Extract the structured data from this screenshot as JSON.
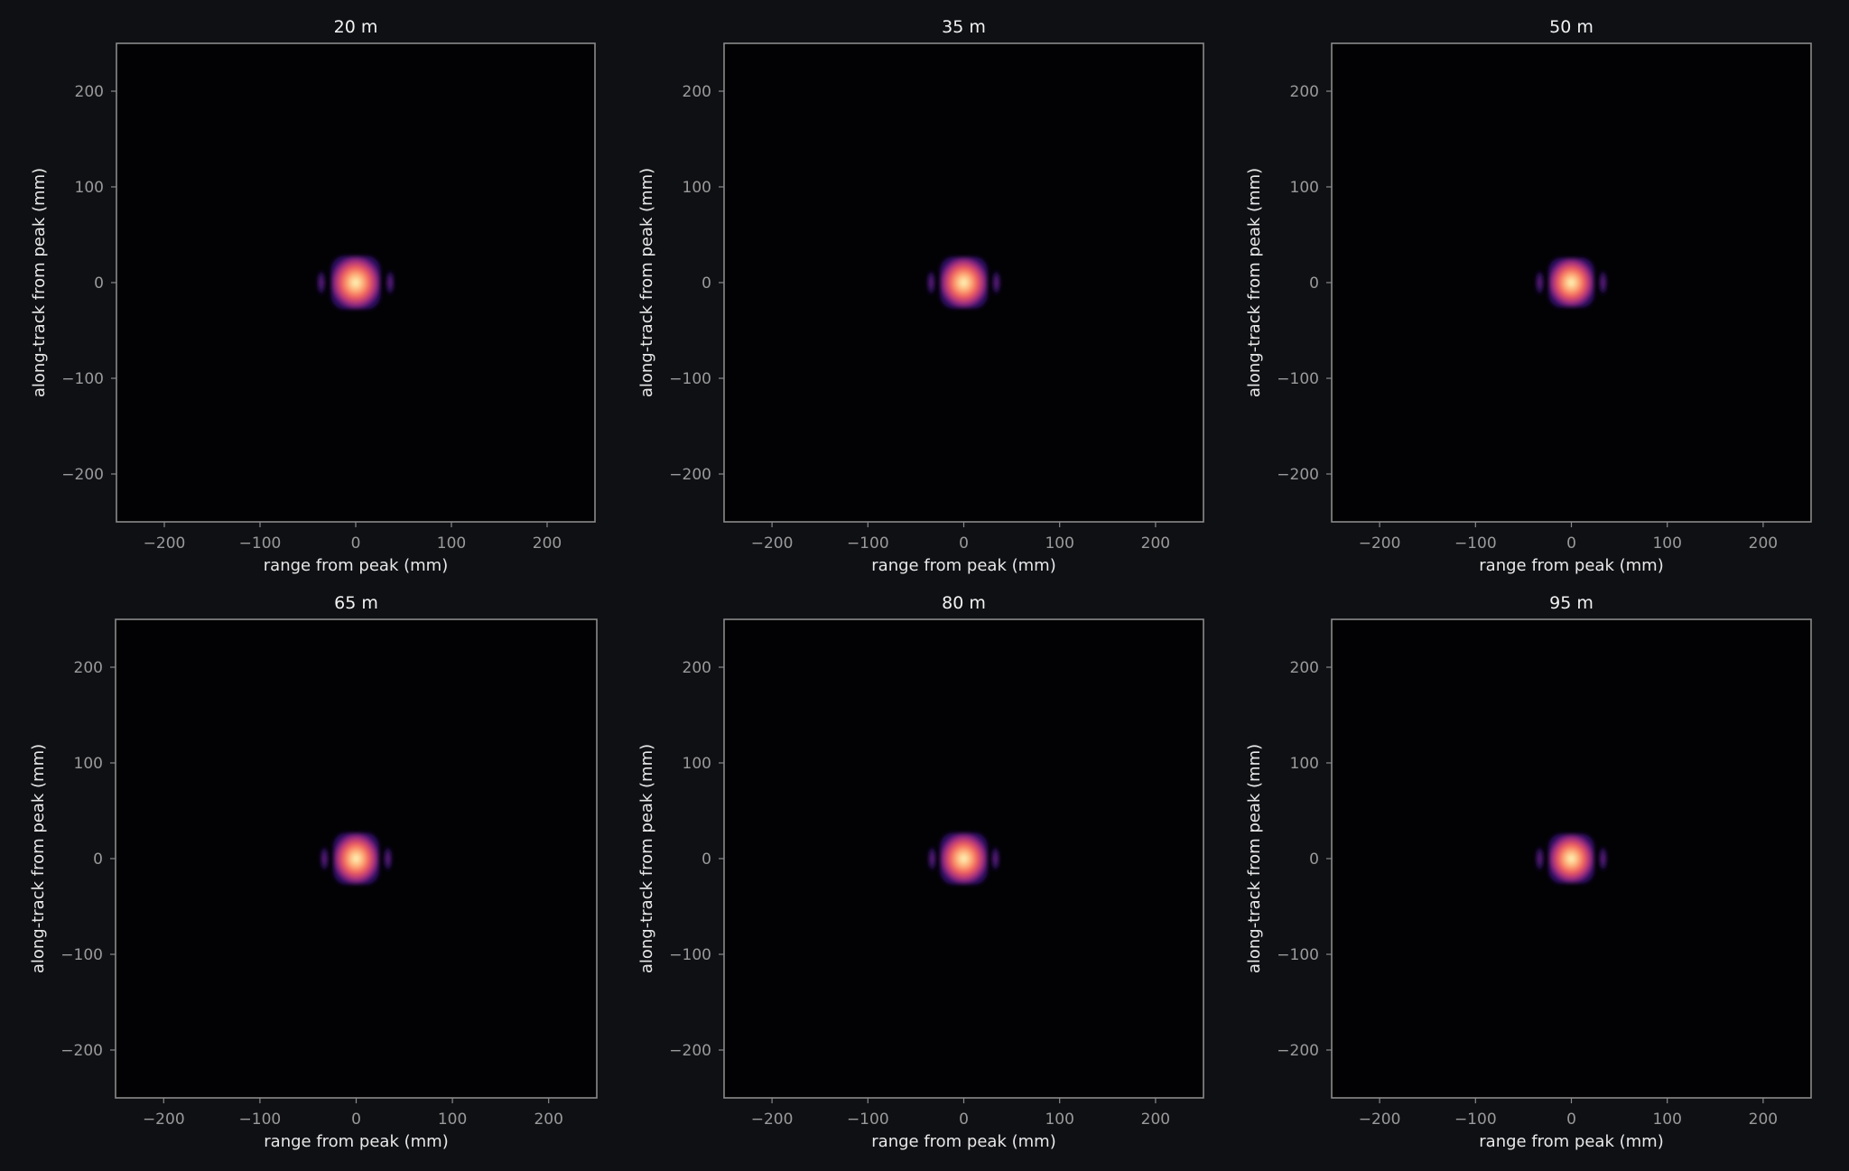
{
  "colors": {
    "figure_background": "#0f1014",
    "axes_background": "#020204",
    "text": "#f2f2f2",
    "tick_text": "#9a9a9a",
    "spine": "#8a8a8a",
    "colormap": [
      "#000004",
      "#2c115f",
      "#721f81",
      "#b73779",
      "#f1605d",
      "#feb078",
      "#fcfdbf"
    ]
  },
  "chart_data": [
    {
      "type": "heatmap",
      "title": "20 m",
      "xlabel": "range from peak (mm)",
      "ylabel": "along-track from peak (mm)",
      "xlim": [
        -250,
        250
      ],
      "ylim": [
        -250,
        250
      ],
      "xticks": [
        -200,
        -100,
        0,
        100,
        200
      ],
      "yticks": [
        -200,
        -100,
        0,
        100,
        200
      ],
      "xtick_labels": [
        "−200",
        "−100",
        "0",
        "100",
        "200"
      ],
      "ytick_labels": [
        "−200",
        "−100",
        "0",
        "100",
        "200"
      ],
      "grid": false,
      "colormap": "magma",
      "peak": [
        0,
        0
      ],
      "mainlobe_halfwidth_mm": [
        26,
        28
      ],
      "sidelobe_offset_mm": 36
    },
    {
      "type": "heatmap",
      "title": "35 m",
      "xlabel": "range from peak (mm)",
      "ylabel": "along-track from peak (mm)",
      "xlim": [
        -250,
        250
      ],
      "ylim": [
        -250,
        250
      ],
      "xticks": [
        -200,
        -100,
        0,
        100,
        200
      ],
      "yticks": [
        -200,
        -100,
        0,
        100,
        200
      ],
      "xtick_labels": [
        "−200",
        "−100",
        "0",
        "100",
        "200"
      ],
      "ytick_labels": [
        "−200",
        "−100",
        "0",
        "100",
        "200"
      ],
      "grid": false,
      "colormap": "magma",
      "peak": [
        0,
        0
      ],
      "mainlobe_halfwidth_mm": [
        25,
        27
      ],
      "sidelobe_offset_mm": 34
    },
    {
      "type": "heatmap",
      "title": "50 m",
      "xlabel": "range from peak (mm)",
      "ylabel": "along-track from peak (mm)",
      "xlim": [
        -250,
        250
      ],
      "ylim": [
        -250,
        250
      ],
      "xticks": [
        -200,
        -100,
        0,
        100,
        200
      ],
      "yticks": [
        -200,
        -100,
        0,
        100,
        200
      ],
      "xtick_labels": [
        "−200",
        "−100",
        "0",
        "100",
        "200"
      ],
      "ytick_labels": [
        "−200",
        "−100",
        "0",
        "100",
        "200"
      ],
      "grid": false,
      "colormap": "magma",
      "peak": [
        0,
        0
      ],
      "mainlobe_halfwidth_mm": [
        24,
        26
      ],
      "sidelobe_offset_mm": 33
    },
    {
      "type": "heatmap",
      "title": "65 m",
      "xlabel": "range from peak (mm)",
      "ylabel": "along-track from peak (mm)",
      "xlim": [
        -250,
        250
      ],
      "ylim": [
        -250,
        250
      ],
      "xticks": [
        -200,
        -100,
        0,
        100,
        200
      ],
      "yticks": [
        -200,
        -100,
        0,
        100,
        200
      ],
      "xtick_labels": [
        "−200",
        "−100",
        "0",
        "100",
        "200"
      ],
      "ytick_labels": [
        "−200",
        "−100",
        "0",
        "100",
        "200"
      ],
      "grid": false,
      "colormap": "magma",
      "peak": [
        0,
        0
      ],
      "mainlobe_halfwidth_mm": [
        24,
        27
      ],
      "sidelobe_offset_mm": 33
    },
    {
      "type": "heatmap",
      "title": "80 m",
      "xlabel": "range from peak (mm)",
      "ylabel": "along-track from peak (mm)",
      "xlim": [
        -250,
        250
      ],
      "ylim": [
        -250,
        250
      ],
      "xticks": [
        -200,
        -100,
        0,
        100,
        200
      ],
      "yticks": [
        -200,
        -100,
        0,
        100,
        200
      ],
      "xtick_labels": [
        "−200",
        "−100",
        "0",
        "100",
        "200"
      ],
      "ytick_labels": [
        "−200",
        "−100",
        "0",
        "100",
        "200"
      ],
      "grid": false,
      "colormap": "magma",
      "peak": [
        0,
        0
      ],
      "mainlobe_halfwidth_mm": [
        25,
        27
      ],
      "sidelobe_offset_mm": 33
    },
    {
      "type": "heatmap",
      "title": "95 m",
      "xlabel": "range from peak (mm)",
      "ylabel": "along-track from peak (mm)",
      "xlim": [
        -250,
        250
      ],
      "ylim": [
        -250,
        250
      ],
      "xticks": [
        -200,
        -100,
        0,
        100,
        200
      ],
      "yticks": [
        -200,
        -100,
        0,
        100,
        200
      ],
      "xtick_labels": [
        "−200",
        "−100",
        "0",
        "100",
        "200"
      ],
      "ytick_labels": [
        "−200",
        "−100",
        "0",
        "100",
        "200"
      ],
      "grid": false,
      "colormap": "magma",
      "peak": [
        0,
        0
      ],
      "mainlobe_halfwidth_mm": [
        24,
        26
      ],
      "sidelobe_offset_mm": 33
    }
  ]
}
